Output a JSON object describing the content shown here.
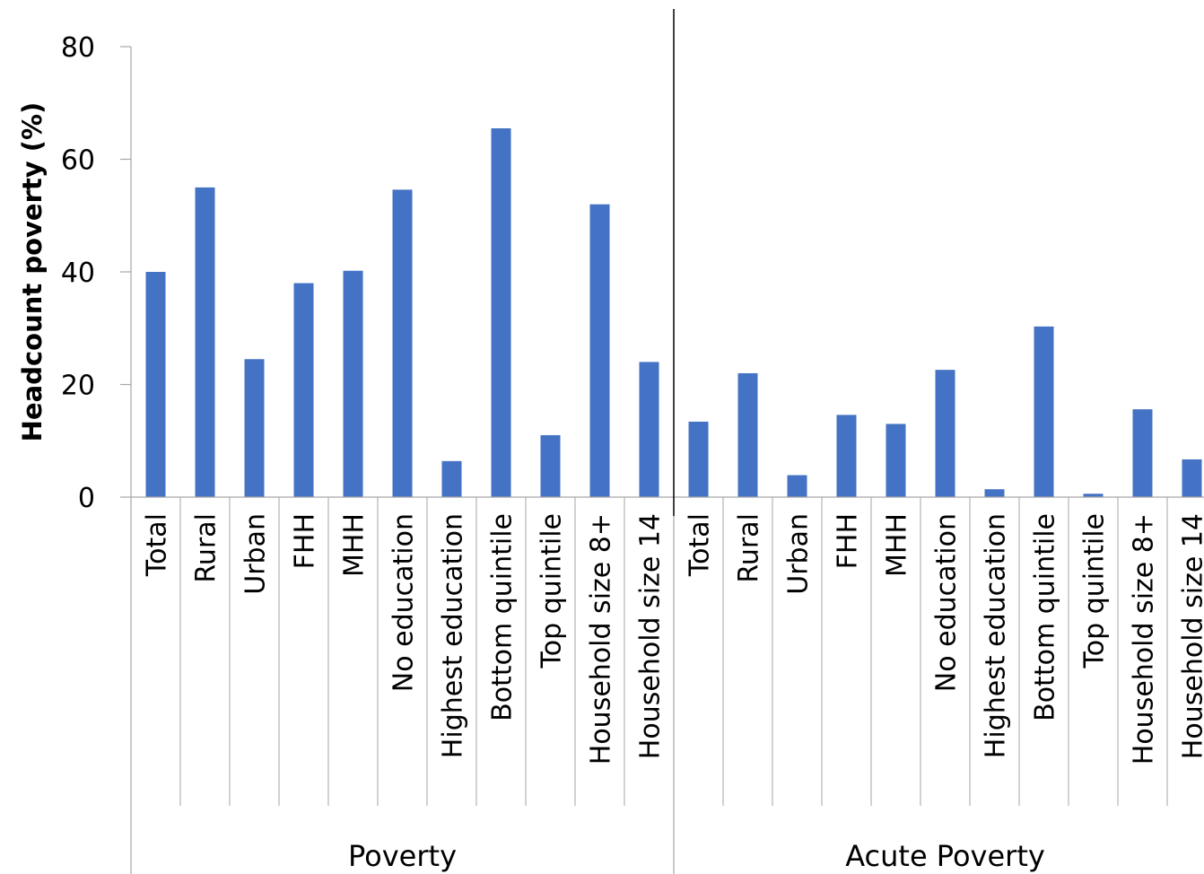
{
  "chart_data": {
    "type": "bar",
    "ylabel": "Headcount poverty (%)",
    "ylim": [
      0,
      80
    ],
    "yticks": [
      0,
      20,
      40,
      60,
      80
    ],
    "grid": false,
    "bar_color": "#4472C4",
    "groups": [
      {
        "name": "Poverty",
        "categories": [
          "Total",
          "Rural",
          "Urban",
          "FHH",
          "MHH",
          "No education",
          "Highest education",
          "Bottom quintile",
          "Top quintile",
          "Household size 8+",
          "Household size 14"
        ],
        "values": [
          40,
          55,
          24.5,
          38,
          40.2,
          54.6,
          6.4,
          65.5,
          11,
          52,
          24
        ]
      },
      {
        "name": "Acute Poverty",
        "categories": [
          "Total",
          "Rural",
          "Urban",
          "FHH",
          "MHH",
          "No education",
          "Highest education",
          "Bottom quintile",
          "Top quintile",
          "Household size 8+",
          "Household size 14"
        ],
        "values": [
          13.4,
          22,
          3.9,
          14.6,
          13,
          22.6,
          1.4,
          30.3,
          0.6,
          15.6,
          6.7
        ]
      }
    ]
  }
}
